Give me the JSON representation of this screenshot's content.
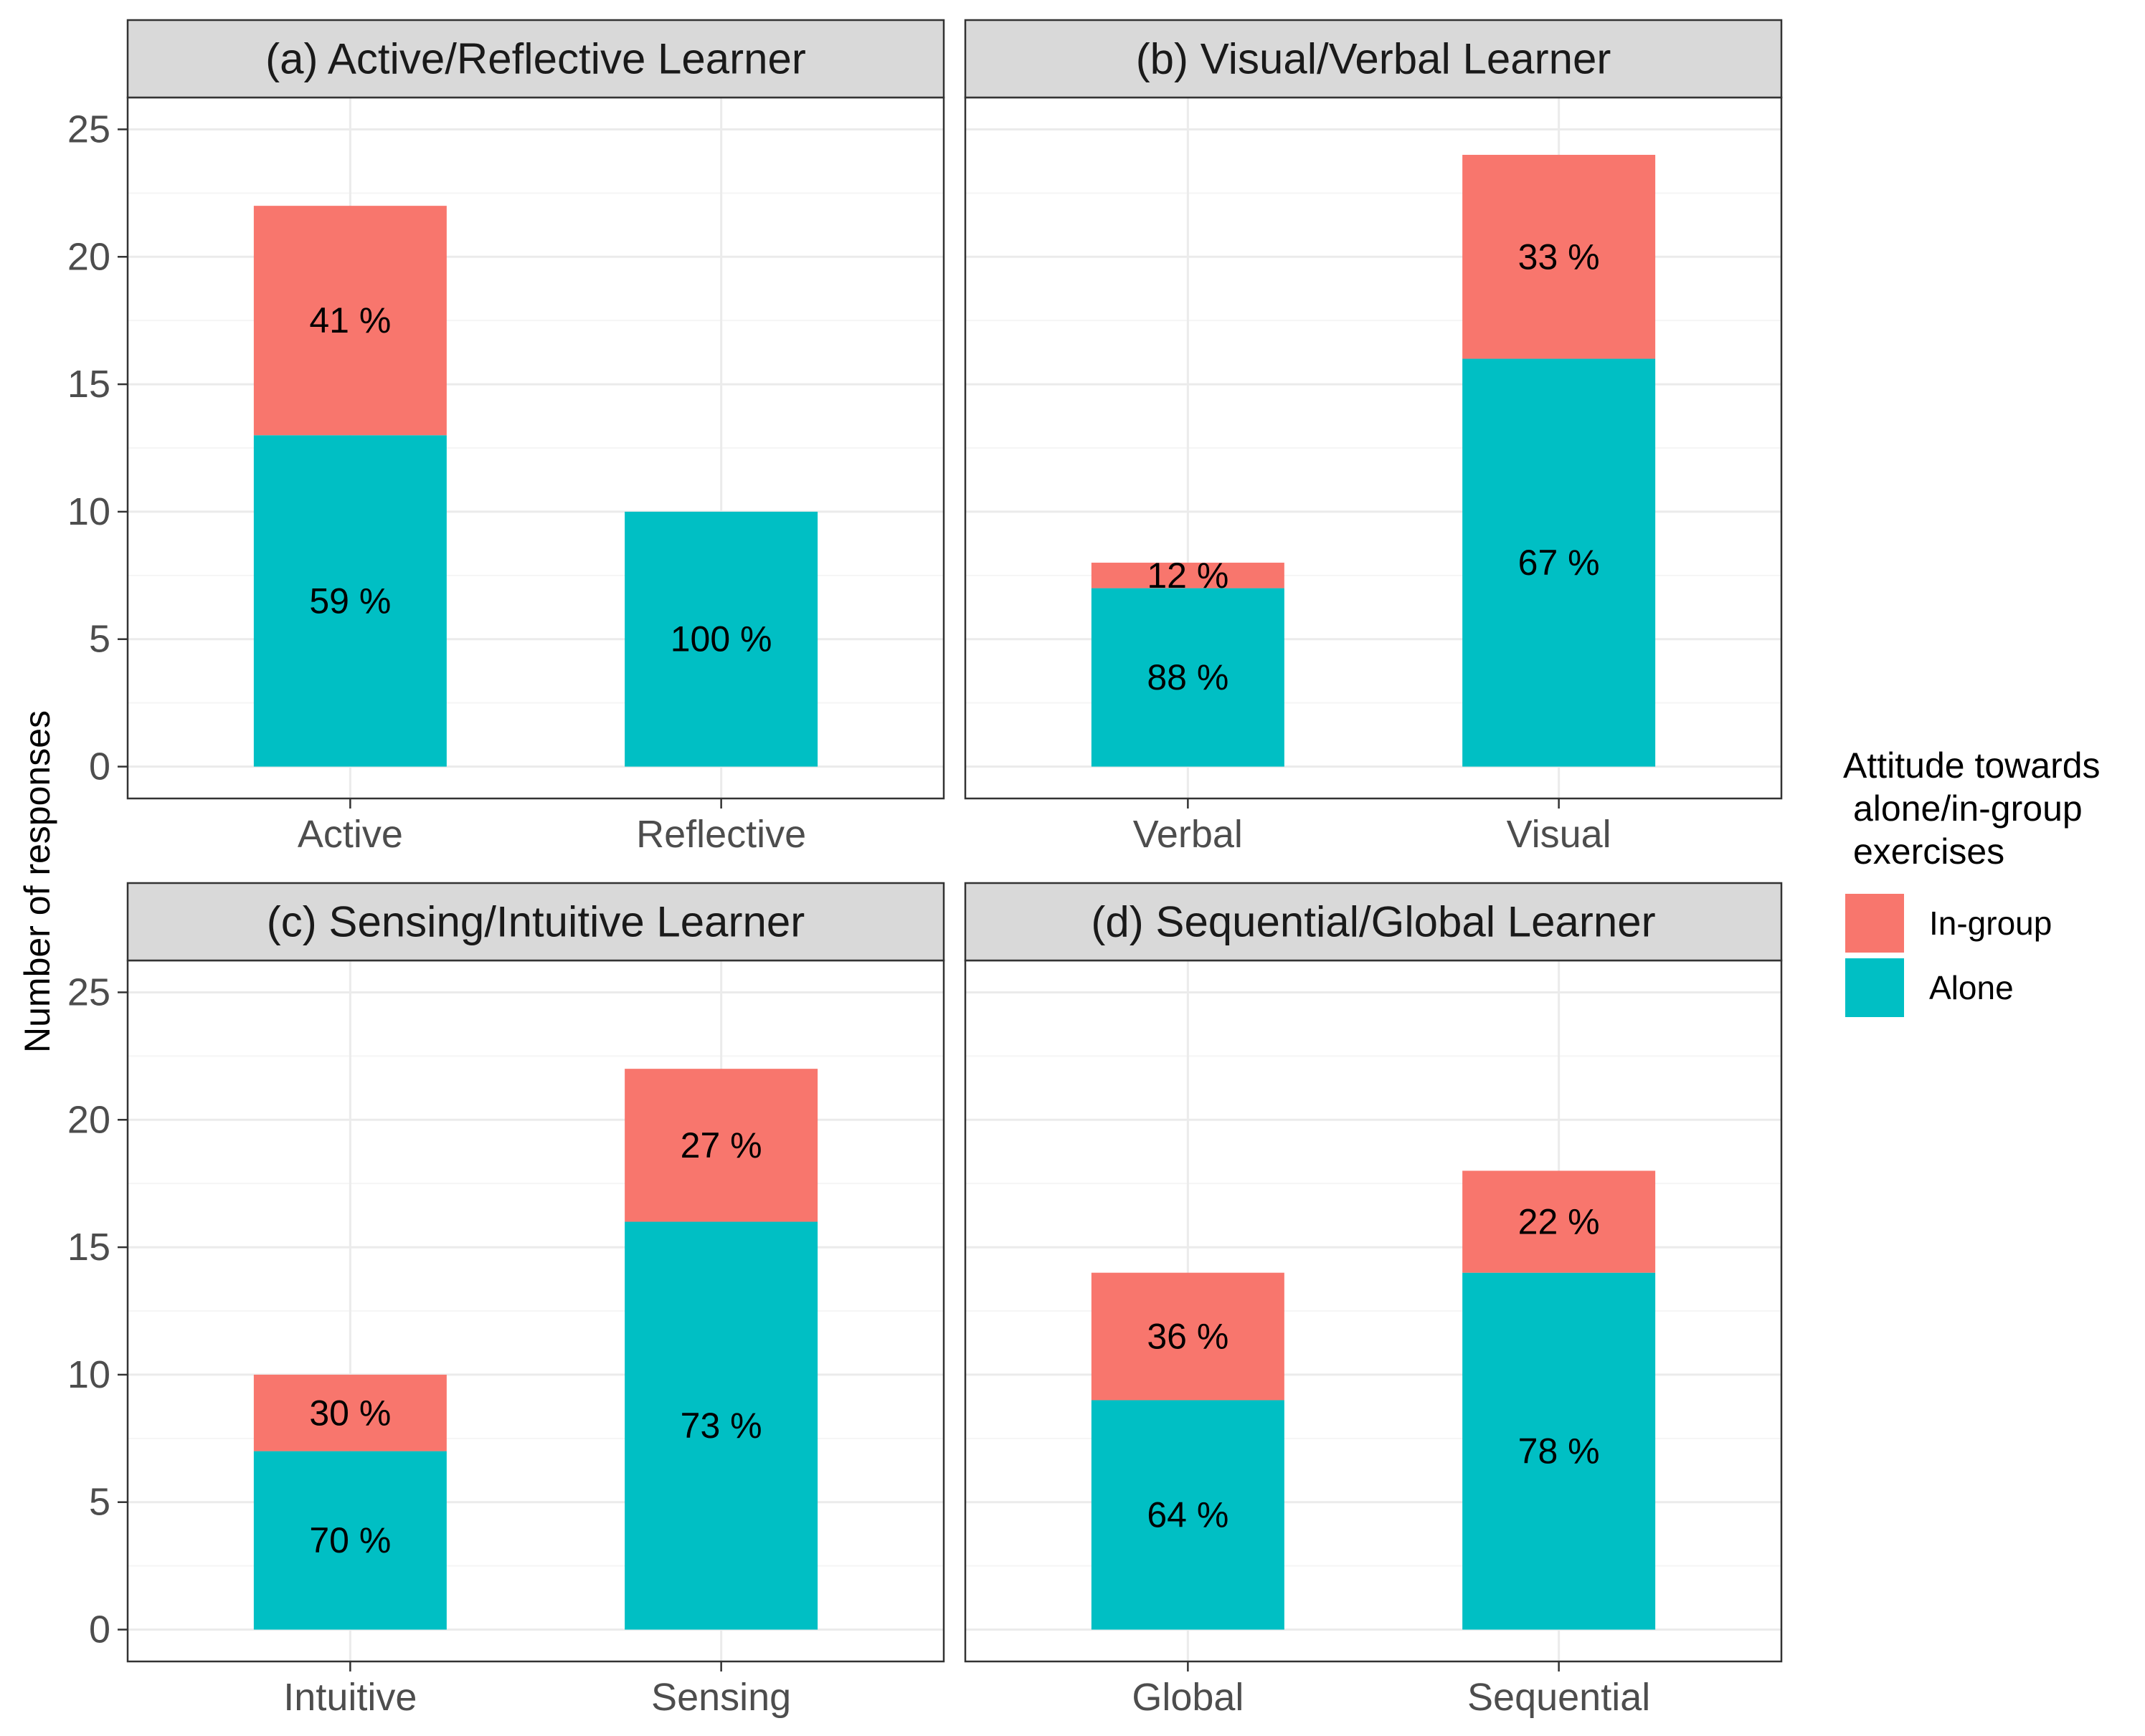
{
  "chart_data": {
    "type": "bar",
    "stacked": true,
    "ylabel": "Number of responses",
    "ylim": [
      0,
      25
    ],
    "yticks": [
      0,
      5,
      10,
      15,
      20,
      25
    ],
    "grid": true,
    "legend": {
      "title_lines": [
        "Attitude towards",
        "alone/in-group",
        "exercises"
      ],
      "placement": "right",
      "entries": [
        {
          "name": "In-group",
          "color": "#F8766D"
        },
        {
          "name": "Alone",
          "color": "#00BFC4"
        }
      ]
    },
    "panels": [
      {
        "title": "(a) Active/Reflective Learner",
        "categories": [
          "Active",
          "Reflective"
        ],
        "series": [
          {
            "name": "Alone",
            "values": [
              13,
              10
            ],
            "labels": [
              "59 %",
              "100 %"
            ]
          },
          {
            "name": "In-group",
            "values": [
              9,
              0
            ],
            "labels": [
              "41 %",
              ""
            ]
          }
        ]
      },
      {
        "title": "(b) Visual/Verbal Learner",
        "categories": [
          "Verbal",
          "Visual"
        ],
        "series": [
          {
            "name": "Alone",
            "values": [
              7,
              16
            ],
            "labels": [
              "88 %",
              "67 %"
            ]
          },
          {
            "name": "In-group",
            "values": [
              1,
              8
            ],
            "labels": [
              "12 %",
              "33 %"
            ]
          }
        ]
      },
      {
        "title": "(c) Sensing/Intuitive Learner",
        "categories": [
          "Intuitive",
          "Sensing"
        ],
        "series": [
          {
            "name": "Alone",
            "values": [
              7,
              16
            ],
            "labels": [
              "70 %",
              "73 %"
            ]
          },
          {
            "name": "In-group",
            "values": [
              3,
              6
            ],
            "labels": [
              "30 %",
              "27 %"
            ]
          }
        ]
      },
      {
        "title": "(d) Sequential/Global Learner",
        "categories": [
          "Global",
          "Sequential"
        ],
        "series": [
          {
            "name": "Alone",
            "values": [
              9,
              14
            ],
            "labels": [
              "64 %",
              "78 %"
            ]
          },
          {
            "name": "In-group",
            "values": [
              5,
              4
            ],
            "labels": [
              "36 %",
              "22 %"
            ]
          }
        ]
      }
    ]
  },
  "colors": {
    "alone": "#00BFC4",
    "in_group": "#F8766D",
    "strip_fill": "#D9D9D9",
    "grid_major": "#EBEBEB",
    "grid_minor": "#F5F5F5",
    "panel_border": "#333333"
  }
}
